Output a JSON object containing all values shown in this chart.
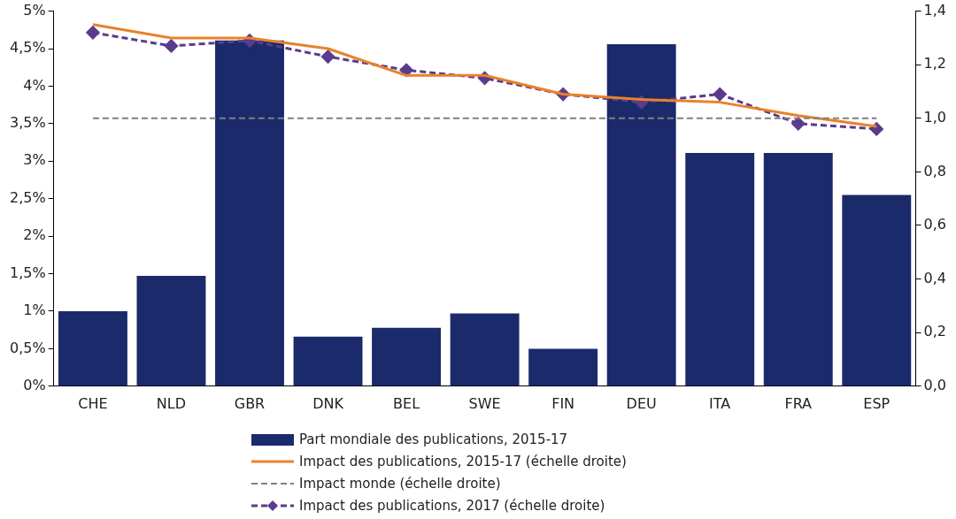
{
  "chart_data": {
    "type": "bar",
    "categories": [
      "CHE",
      "NLD",
      "GBR",
      "DNK",
      "BEL",
      "SWE",
      "FIN",
      "DEU",
      "ITA",
      "FRA",
      "ESP"
    ],
    "series": [
      {
        "name": "Part mondiale des publications, 2015-17",
        "color": "#1b2a6b",
        "values": [
          1.0,
          1.47,
          4.61,
          0.66,
          0.78,
          0.97,
          0.5,
          4.56,
          3.11,
          3.11,
          2.55
        ]
      },
      {
        "name": "Impact des publications, 2015-17 (échelle droite)",
        "type": "line",
        "axis": "y2",
        "color": "#e8822a",
        "marker": "none",
        "line_style": "solid",
        "values": [
          1.35,
          1.3,
          1.3,
          1.26,
          1.16,
          1.16,
          1.09,
          1.07,
          1.06,
          1.01,
          0.97
        ]
      },
      {
        "name": "Impact des publications, 2017 (échelle droite)",
        "type": "line",
        "axis": "y2",
        "color": "#5b3b8c",
        "marker": "diamond",
        "line_style": "dashed",
        "values": [
          1.32,
          1.27,
          1.29,
          1.23,
          1.18,
          1.15,
          1.09,
          1.06,
          1.09,
          0.98,
          0.96
        ]
      }
    ],
    "ylim": [
      0,
      5
    ],
    "yticks": [
      {
        "value": 0,
        "label": "0%"
      },
      {
        "value": 0.5,
        "label": "0,5%"
      },
      {
        "value": 1,
        "label": "1%"
      },
      {
        "value": 1.5,
        "label": "1,5%"
      },
      {
        "value": 2,
        "label": "2%"
      },
      {
        "value": 2.5,
        "label": "2,5%"
      },
      {
        "value": 3,
        "label": "3%"
      },
      {
        "value": 3.5,
        "label": "3,5%"
      },
      {
        "value": 4,
        "label": "4%"
      },
      {
        "value": 4.5,
        "label": "4,5%"
      },
      {
        "value": 5,
        "label": "5%"
      }
    ],
    "y2lim": [
      0,
      1.4
    ],
    "y2ticks": [
      {
        "value": 0,
        "label": "0,0"
      },
      {
        "value": 0.2,
        "label": "0,2"
      },
      {
        "value": 0.4,
        "label": "0,4"
      },
      {
        "value": 0.6,
        "label": "0,6"
      },
      {
        "value": 0.8,
        "label": "0,8"
      },
      {
        "value": 1,
        "label": "1,0"
      },
      {
        "value": 1.2,
        "label": "1,2"
      },
      {
        "value": 1.4,
        "label": "1,4"
      }
    ],
    "ref_lines": [
      {
        "axis": "y2",
        "value": 1.0,
        "label": "Impact monde (échelle droite)",
        "color": "#808080",
        "line_style": "dashed"
      }
    ],
    "grid": false,
    "legend": "bottom"
  }
}
